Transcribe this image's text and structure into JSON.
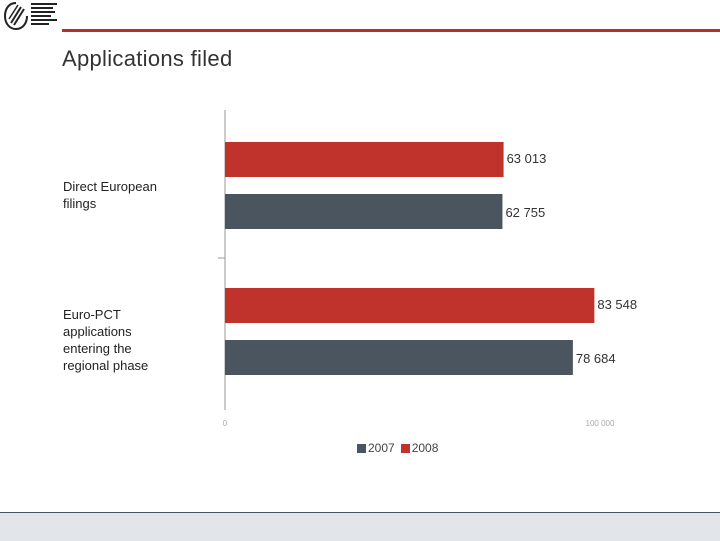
{
  "header": {
    "title": "Applications filed"
  },
  "colors": {
    "accent": "#b2312b",
    "series_2007": "#4a5560",
    "series_2008": "#c0332d"
  },
  "chart_data": {
    "type": "bar",
    "orientation": "horizontal",
    "categories": [
      "Direct European filings",
      "Euro-PCT applications entering the regional phase"
    ],
    "category_labels": [
      "Direct European\nfilings",
      "Euro-PCT\napplications\nentering the\nregional phase"
    ],
    "series": [
      {
        "name": "2007",
        "values": [
          62755,
          78684
        ],
        "labels": [
          "62 755",
          "78 684"
        ]
      },
      {
        "name": "2008",
        "values": [
          63013,
          83548
        ],
        "labels": [
          "63 013",
          "83 548"
        ]
      }
    ],
    "xlim": [
      0,
      95000
    ],
    "tick_labels": [
      "0",
      "100 000"
    ],
    "legend": {
      "placement": "bottom",
      "items": [
        "2007",
        "2008"
      ]
    },
    "grid": false
  }
}
